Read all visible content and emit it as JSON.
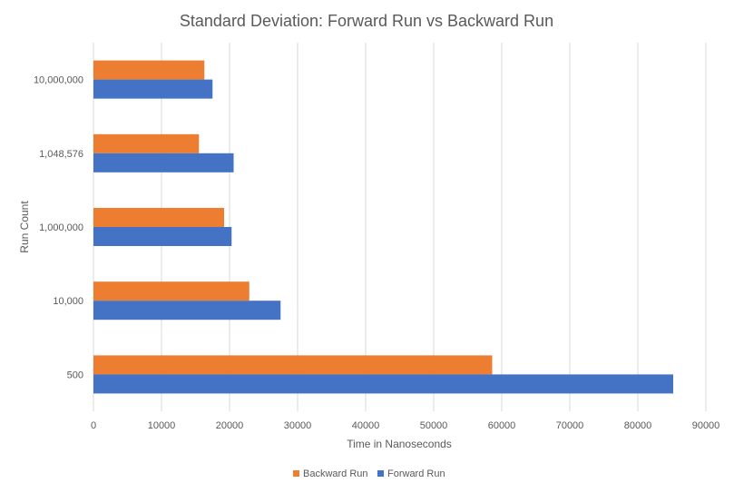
{
  "chart_data": {
    "type": "bar",
    "orientation": "horizontal",
    "title": "Standard Deviation: Forward Run vs Backward Run",
    "xlabel": "Time  in Nanoseconds",
    "ylabel": "Run Count",
    "categories": [
      "500",
      "10,000",
      "1,000,000",
      "1,048,576",
      "10,000,000"
    ],
    "series": [
      {
        "name": "Backward Run",
        "color": "#ED7D31",
        "values": [
          58600,
          22900,
          19200,
          15500,
          16300
        ]
      },
      {
        "name": "Forward Run",
        "color": "#4472C4",
        "values": [
          85200,
          27500,
          20300,
          20600,
          17500
        ]
      }
    ],
    "xlim": [
      0,
      90000
    ],
    "xticks": [
      "0",
      "10000",
      "20000",
      "30000",
      "40000",
      "50000",
      "60000",
      "70000",
      "80000",
      "90000"
    ],
    "grid": true,
    "legend_position": "bottom"
  }
}
